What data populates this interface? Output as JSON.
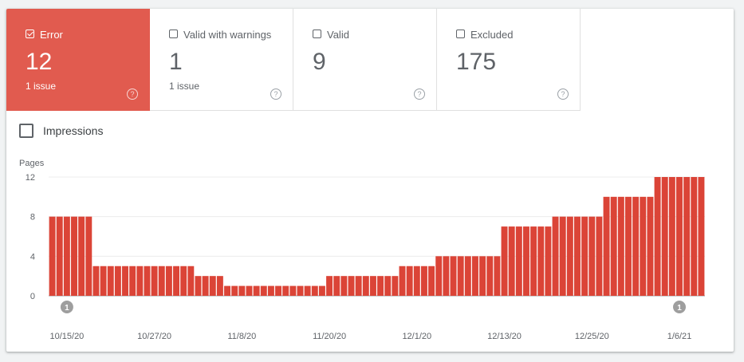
{
  "tiles": [
    {
      "label": "Error",
      "count": "12",
      "sub": "1 issue",
      "active": true
    },
    {
      "label": "Valid with warnings",
      "count": "1",
      "sub": "1 issue",
      "active": false
    },
    {
      "label": "Valid",
      "count": "9",
      "sub": "",
      "active": false
    },
    {
      "label": "Excluded",
      "count": "175",
      "sub": "",
      "active": false
    }
  ],
  "help_glyph": "?",
  "impressions_label": "Impressions",
  "chart_data": {
    "type": "bar",
    "ylabel": "Pages",
    "ylim": [
      0,
      12
    ],
    "yticks": [
      "0",
      "4",
      "8",
      "12"
    ],
    "xtick_labels": [
      "10/15/20",
      "10/27/20",
      "11/8/20",
      "11/20/20",
      "12/1/20",
      "12/13/20",
      "12/25/20",
      "1/6/21"
    ],
    "color": "#db4437",
    "series": [
      {
        "values": [
          8,
          8,
          8,
          8,
          8,
          8,
          3,
          3,
          3,
          3,
          3,
          3,
          3,
          3,
          3,
          3,
          3,
          3,
          3,
          3,
          2,
          2,
          2,
          2,
          1,
          1,
          1,
          1,
          1,
          1,
          1,
          1,
          1,
          1,
          1,
          1,
          1,
          1,
          2,
          2,
          2,
          2,
          2,
          2,
          2,
          2,
          2,
          2,
          3,
          3,
          3,
          3,
          3,
          4,
          4,
          4,
          4,
          4,
          4,
          4,
          4,
          4,
          7,
          7,
          7,
          7,
          7,
          7,
          7,
          8,
          8,
          8,
          8,
          8,
          8,
          8,
          10,
          10,
          10,
          10,
          10,
          10,
          10,
          12,
          12,
          12,
          12,
          12,
          12,
          12
        ]
      }
    ],
    "annotations": [
      {
        "label": "1",
        "at_bar": 2
      },
      {
        "label": "1",
        "at_bar": 86
      }
    ]
  }
}
